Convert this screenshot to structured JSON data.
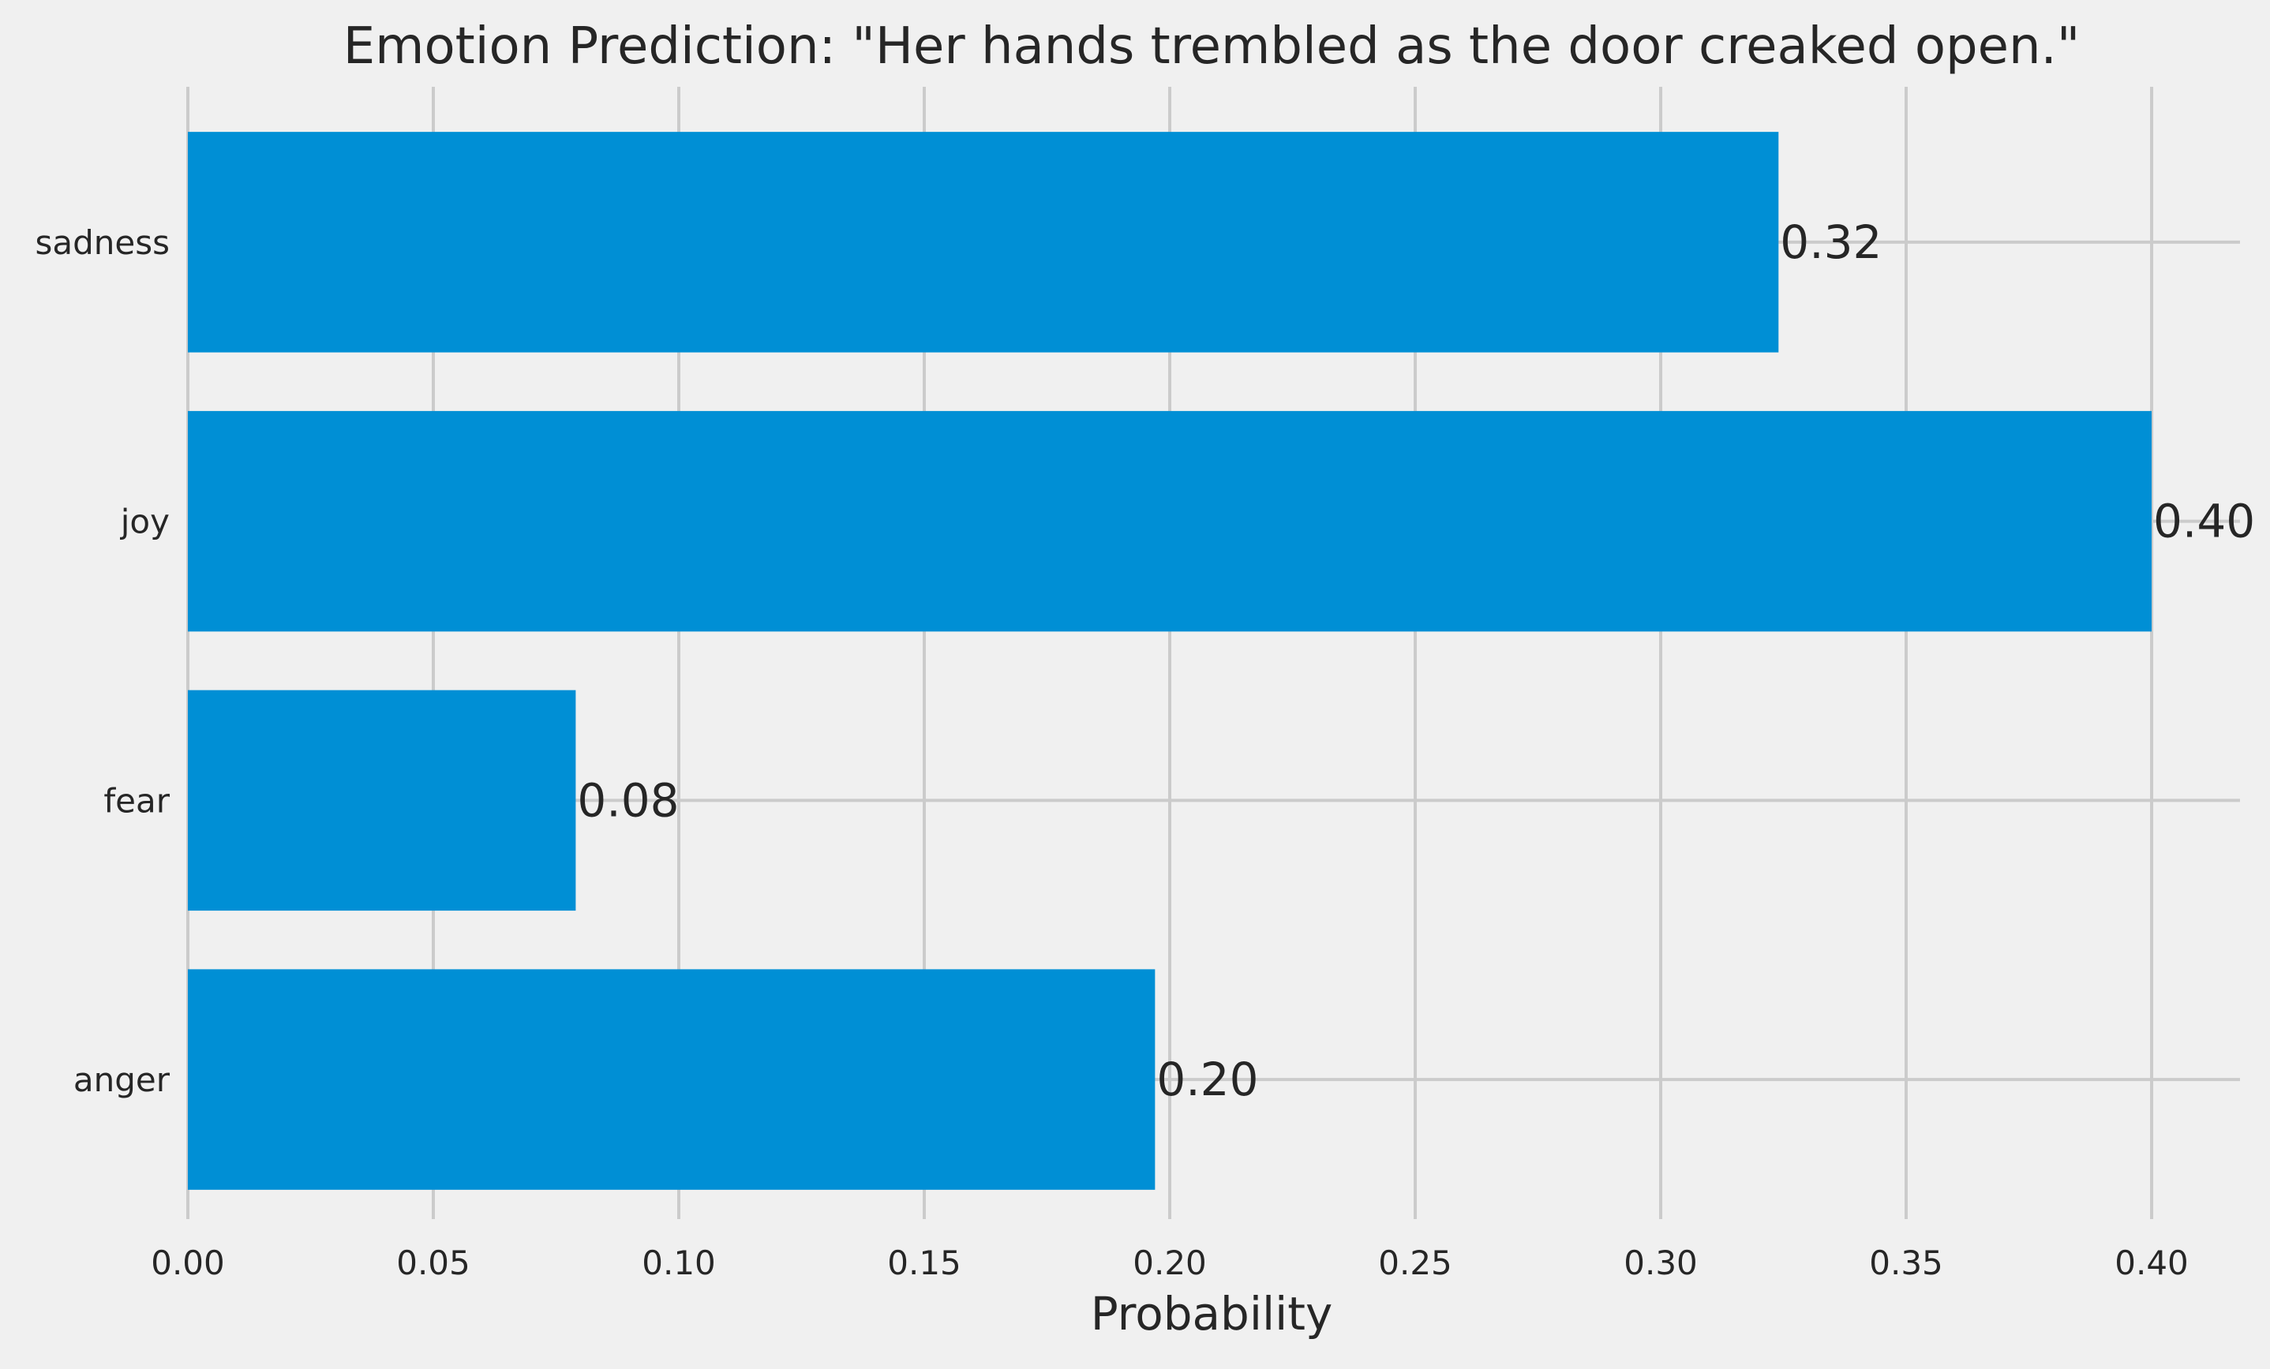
{
  "chart_data": {
    "type": "bar",
    "orientation": "horizontal",
    "title": "Emotion Prediction: \"Her hands trembled as the door creaked open.\"",
    "xlabel": "Probability",
    "ylabel": "",
    "categories": [
      "anger",
      "fear",
      "joy",
      "sadness"
    ],
    "values": [
      0.197,
      0.079,
      0.4,
      0.324
    ],
    "value_labels": [
      "0.20",
      "0.08",
      "0.40",
      "0.32"
    ],
    "xlim": [
      0,
      0.418
    ],
    "xticks": [
      0.0,
      0.05,
      0.1,
      0.15,
      0.2,
      0.25,
      0.3,
      0.35,
      0.4
    ],
    "xtick_labels": [
      "0.00",
      "0.05",
      "0.10",
      "0.15",
      "0.20",
      "0.25",
      "0.30",
      "0.35",
      "0.40"
    ],
    "grid": true,
    "bar_color": "#008fd5",
    "background": "#f0f0f0",
    "grid_color": "#cbcbcb",
    "text_color": "#262626"
  }
}
